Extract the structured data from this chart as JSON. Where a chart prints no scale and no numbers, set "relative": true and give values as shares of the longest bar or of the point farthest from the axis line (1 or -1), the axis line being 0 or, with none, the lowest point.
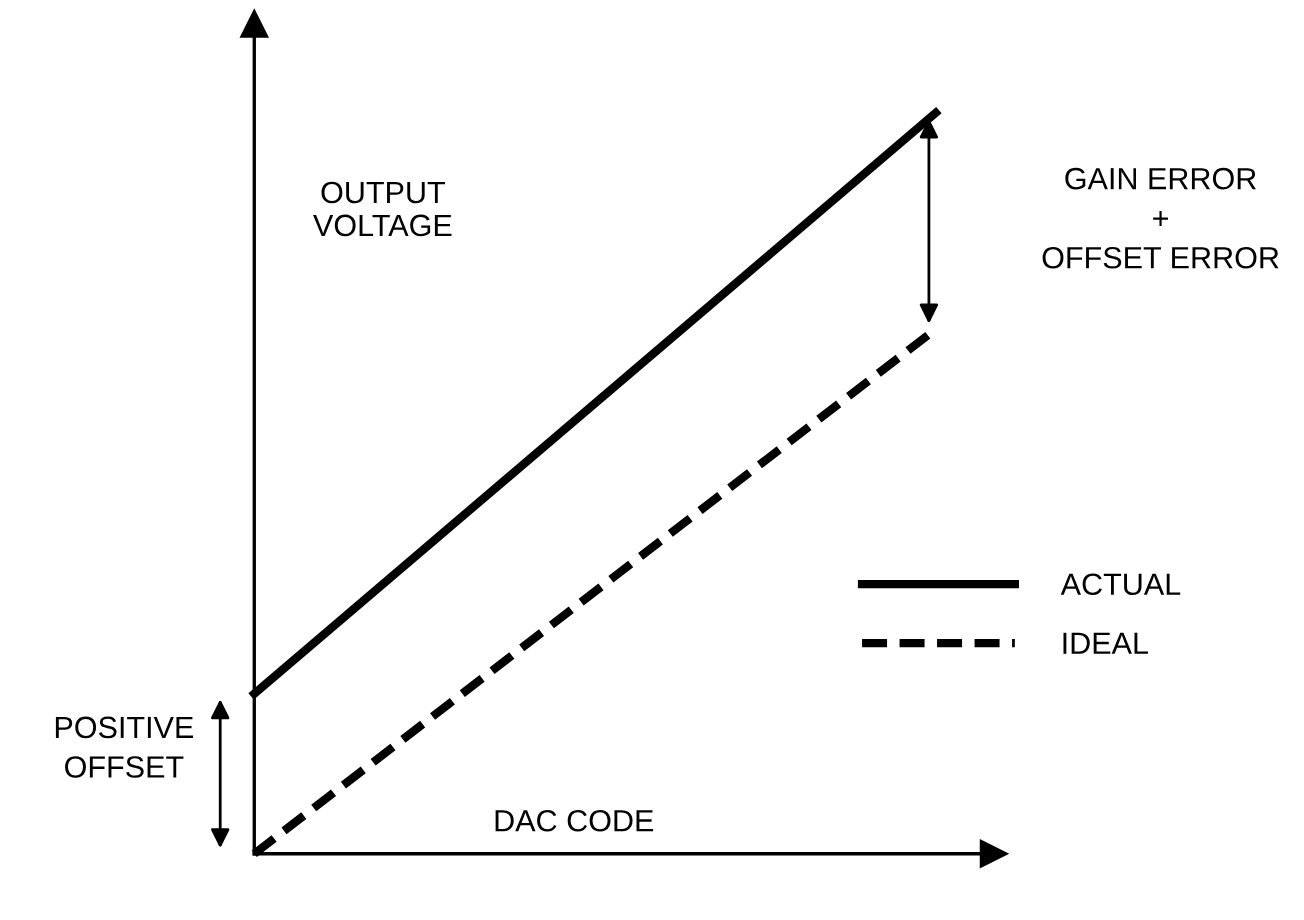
{
  "chart_data": {
    "type": "line",
    "relative": true,
    "categories": [
      null,
      null
    ],
    "xlabel": "DAC CODE",
    "ylabel": "OUTPUT\nVOLTAGE",
    "series": [
      {
        "name": "ACTUAL",
        "color": "#000000",
        "values": [
          0.216,
          1
        ],
        "line_style": "solid"
      },
      {
        "name": "IDEAL",
        "color": "#000000",
        "values": [
          0,
          0.708
        ],
        "line_style": "dashed"
      }
    ],
    "annotations": [
      "GAIN ERROR\n+\nOFFSET ERROR",
      "POSITIVE\nOFFSET"
    ],
    "legend": "right",
    "grid": false,
    "marker": "none"
  }
}
